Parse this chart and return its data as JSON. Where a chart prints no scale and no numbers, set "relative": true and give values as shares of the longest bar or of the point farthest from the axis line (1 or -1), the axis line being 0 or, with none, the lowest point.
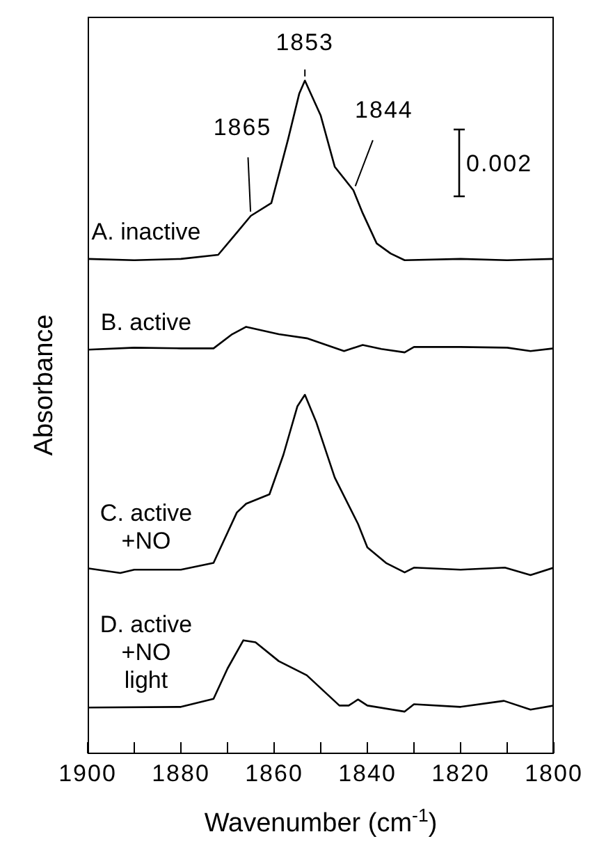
{
  "chart_data": {
    "type": "line",
    "relative": true,
    "xlabel": "Wavenumber (cm$^{-1}$)",
    "ylabel": "Absorbance",
    "xlim": [
      1900,
      1800
    ],
    "xticks": [
      1900,
      {
        "value": 1890,
        "label": null
      },
      1880,
      {
        "value": 1870,
        "label": null
      },
      1860,
      {
        "value": 1850,
        "label": null
      },
      1840,
      {
        "value": 1830,
        "label": null
      },
      1820,
      {
        "value": 1810,
        "label": null
      },
      1800
    ],
    "marker": "none",
    "line_style": "solid",
    "series": [
      {
        "name": "A. inactive",
        "color": "#000000",
        "x": [
          1900,
          1890,
          1880,
          1872,
          1868,
          1865,
          1860.6,
          1857,
          1854.6,
          1853.4,
          1850,
          1847,
          1843,
          1841,
          1838,
          1835,
          1832,
          1820,
          1810,
          1800
        ],
        "values": [
          0.735,
          0.733,
          0.735,
          0.741,
          0.774,
          0.799,
          0.818,
          0.913,
          0.981,
          1.0,
          0.948,
          0.872,
          0.837,
          0.803,
          0.758,
          0.743,
          0.733,
          0.735,
          0.733,
          0.735
        ]
      },
      {
        "name": "B. active",
        "color": "#000000",
        "x": [
          1900,
          1890,
          1880,
          1873,
          1869,
          1866,
          1859,
          1853,
          1845,
          1841,
          1837,
          1832,
          1830,
          1820,
          1810,
          1805,
          1800
        ],
        "values": [
          0.6,
          0.603,
          0.602,
          0.602,
          0.623,
          0.634,
          0.623,
          0.617,
          0.598,
          0.607,
          0.601,
          0.596,
          0.604,
          0.604,
          0.603,
          0.598,
          0.602
        ]
      },
      {
        "name": "C. active\n+NO",
        "color": "#000000",
        "x": [
          1900,
          1893,
          1890,
          1880,
          1873,
          1868,
          1866,
          1861,
          1858,
          1855,
          1853.4,
          1851,
          1847,
          1842,
          1840,
          1836,
          1832,
          1830,
          1820,
          1810.5,
          1805,
          1800
        ],
        "values": [
          0.275,
          0.268,
          0.273,
          0.273,
          0.283,
          0.358,
          0.371,
          0.385,
          0.444,
          0.516,
          0.533,
          0.493,
          0.41,
          0.341,
          0.306,
          0.283,
          0.269,
          0.276,
          0.273,
          0.276,
          0.265,
          0.276
        ]
      },
      {
        "name": "D. active\n+NO\nlight",
        "color": "#000000",
        "x": [
          1900,
          1880,
          1873,
          1870,
          1866.6,
          1864,
          1859,
          1853,
          1846,
          1844,
          1842,
          1840,
          1832,
          1830,
          1820,
          1810.7,
          1805,
          1800
        ],
        "values": [
          0.068,
          0.069,
          0.081,
          0.126,
          0.168,
          0.165,
          0.137,
          0.116,
          0.071,
          0.071,
          0.08,
          0.071,
          0.062,
          0.073,
          0.069,
          0.078,
          0.065,
          0.071
        ]
      }
    ],
    "annotations": [
      {
        "text": "1853",
        "x": 1853.4,
        "y": 1.0
      },
      {
        "text": "1865",
        "x": 1865,
        "y": 0.799
      },
      {
        "text": "1844",
        "x": 1843,
        "y": 0.837
      },
      "0.002"
    ]
  }
}
